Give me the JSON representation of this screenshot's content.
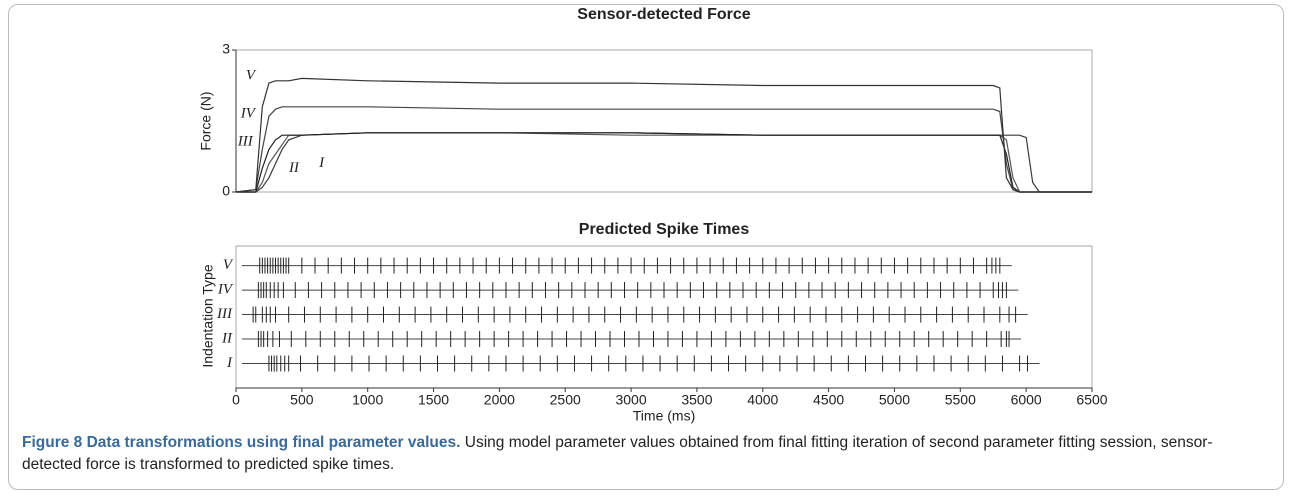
{
  "chart_data": [
    {
      "type": "line",
      "title": "Sensor-detected Force",
      "ylabel": "Force (N)",
      "x": [
        0,
        150,
        200,
        250,
        300,
        350,
        400,
        500,
        1000,
        2000,
        3000,
        4000,
        5000,
        5500,
        5750,
        5800,
        5850,
        5900,
        5950,
        6000,
        6050,
        6100,
        6500
      ],
      "xlim": [
        0,
        6500
      ],
      "ylim": [
        0,
        3
      ],
      "yticks": [
        0,
        3
      ],
      "series": [
        {
          "name": "I",
          "color": "#3a3a3a",
          "values": [
            0,
            0,
            0.1,
            0.3,
            0.6,
            0.9,
            1.1,
            1.2,
            1.25,
            1.25,
            1.25,
            1.2,
            1.2,
            1.2,
            1.2,
            1.2,
            1.2,
            1.2,
            1.2,
            1.15,
            0.2,
            0,
            0
          ]
        },
        {
          "name": "II",
          "color": "#555555",
          "values": [
            0,
            0,
            0.2,
            0.6,
            0.8,
            1.0,
            1.2,
            1.2,
            1.25,
            1.25,
            1.2,
            1.2,
            1.2,
            1.2,
            1.2,
            1.2,
            1.1,
            0.3,
            0,
            0,
            0,
            0,
            0
          ]
        },
        {
          "name": "III",
          "color": "#222222",
          "values": [
            0,
            0,
            0.5,
            0.9,
            1.1,
            1.2,
            1.2,
            1.2,
            1.25,
            1.25,
            1.25,
            1.2,
            1.2,
            1.2,
            1.2,
            1.2,
            0.8,
            0.1,
            0,
            0,
            0,
            0,
            0
          ]
        },
        {
          "name": "IV",
          "color": "#444444",
          "values": [
            0,
            0.05,
            0.9,
            1.6,
            1.75,
            1.8,
            1.8,
            1.8,
            1.8,
            1.75,
            1.75,
            1.75,
            1.75,
            1.75,
            1.75,
            1.7,
            0.6,
            0.05,
            0,
            0,
            0,
            0,
            0
          ]
        },
        {
          "name": "V",
          "color": "#333333",
          "values": [
            0,
            0.05,
            1.8,
            2.3,
            2.35,
            2.35,
            2.35,
            2.4,
            2.35,
            2.3,
            2.3,
            2.25,
            2.25,
            2.25,
            2.25,
            2.2,
            0.3,
            0.05,
            0,
            0,
            0,
            0,
            0
          ]
        }
      ]
    },
    {
      "type": "raster",
      "title": "Predicted Spike Times",
      "xlabel": "Time (ms)",
      "ylabel": "Indentation Type",
      "xlim": [
        0,
        6500
      ],
      "xticks": [
        0,
        500,
        1000,
        1500,
        2000,
        2500,
        3000,
        3500,
        4000,
        4500,
        5000,
        5500,
        6000,
        6500
      ],
      "series": [
        {
          "name": "I",
          "color": "#222222",
          "values": [
            250,
            270,
            290,
            310,
            340,
            370,
            400,
            490,
            620,
            750,
            880,
            1010,
            1140,
            1270,
            1400,
            1530,
            1660,
            1790,
            1920,
            2050,
            2180,
            2310,
            2440,
            2570,
            2700,
            2830,
            2960,
            3090,
            3220,
            3350,
            3480,
            3610,
            3740,
            3870,
            4000,
            4130,
            4260,
            4390,
            4520,
            4650,
            4780,
            4910,
            5040,
            5170,
            5300,
            5430,
            5560,
            5690,
            5820,
            5950,
            6010
          ]
        },
        {
          "name": "II",
          "color": "#222222",
          "values": [
            170,
            190,
            210,
            240,
            280,
            330,
            420,
            530,
            640,
            750,
            860,
            970,
            1080,
            1190,
            1300,
            1410,
            1520,
            1630,
            1740,
            1850,
            1960,
            2070,
            2180,
            2290,
            2400,
            2510,
            2620,
            2730,
            2840,
            2950,
            3060,
            3170,
            3280,
            3390,
            3500,
            3610,
            3720,
            3830,
            3940,
            4050,
            4160,
            4270,
            4380,
            4490,
            4600,
            4710,
            4820,
            4930,
            5040,
            5150,
            5260,
            5370,
            5480,
            5590,
            5700,
            5810,
            5850,
            5870
          ]
        },
        {
          "name": "III",
          "color": "#222222",
          "values": [
            130,
            150,
            200,
            230,
            260,
            300,
            400,
            520,
            640,
            760,
            880,
            1000,
            1120,
            1240,
            1360,
            1480,
            1600,
            1720,
            1840,
            1960,
            2080,
            2200,
            2320,
            2440,
            2560,
            2680,
            2800,
            2920,
            3040,
            3160,
            3280,
            3400,
            3520,
            3640,
            3760,
            3880,
            4000,
            4120,
            4240,
            4360,
            4480,
            4600,
            4720,
            4840,
            4960,
            5080,
            5200,
            5320,
            5440,
            5560,
            5680,
            5800,
            5870,
            5920
          ]
        },
        {
          "name": "IV",
          "color": "#222222",
          "values": [
            170,
            190,
            210,
            230,
            260,
            290,
            320,
            360,
            450,
            550,
            650,
            750,
            850,
            950,
            1050,
            1150,
            1250,
            1350,
            1450,
            1550,
            1650,
            1750,
            1850,
            1950,
            2050,
            2150,
            2250,
            2350,
            2450,
            2550,
            2650,
            2750,
            2850,
            2950,
            3050,
            3150,
            3250,
            3350,
            3450,
            3550,
            3650,
            3750,
            3850,
            3950,
            4050,
            4150,
            4250,
            4350,
            4450,
            4550,
            4650,
            4750,
            4850,
            4950,
            5050,
            5150,
            5250,
            5350,
            5450,
            5550,
            5650,
            5750,
            5790,
            5820,
            5850
          ]
        },
        {
          "name": "V",
          "color": "#222222",
          "values": [
            180,
            200,
            220,
            240,
            260,
            280,
            300,
            320,
            340,
            360,
            380,
            400,
            500,
            600,
            700,
            800,
            900,
            1000,
            1100,
            1200,
            1300,
            1400,
            1500,
            1600,
            1700,
            1800,
            1900,
            2000,
            2100,
            2200,
            2300,
            2400,
            2500,
            2600,
            2700,
            2800,
            2900,
            3000,
            3100,
            3200,
            3300,
            3400,
            3500,
            3600,
            3700,
            3800,
            3900,
            4000,
            4100,
            4200,
            4300,
            4400,
            4500,
            4600,
            4700,
            4800,
            4900,
            5000,
            5100,
            5200,
            5300,
            5400,
            5500,
            5600,
            5700,
            5740,
            5770,
            5800
          ]
        }
      ]
    }
  ],
  "caption": {
    "label": "Figure 8",
    "title": "Data transformations using final parameter values.",
    "text": "Using model parameter values obtained from final fitting iteration of second parameter fitting session, sensor-detected force is transformed to predicted spike times."
  }
}
